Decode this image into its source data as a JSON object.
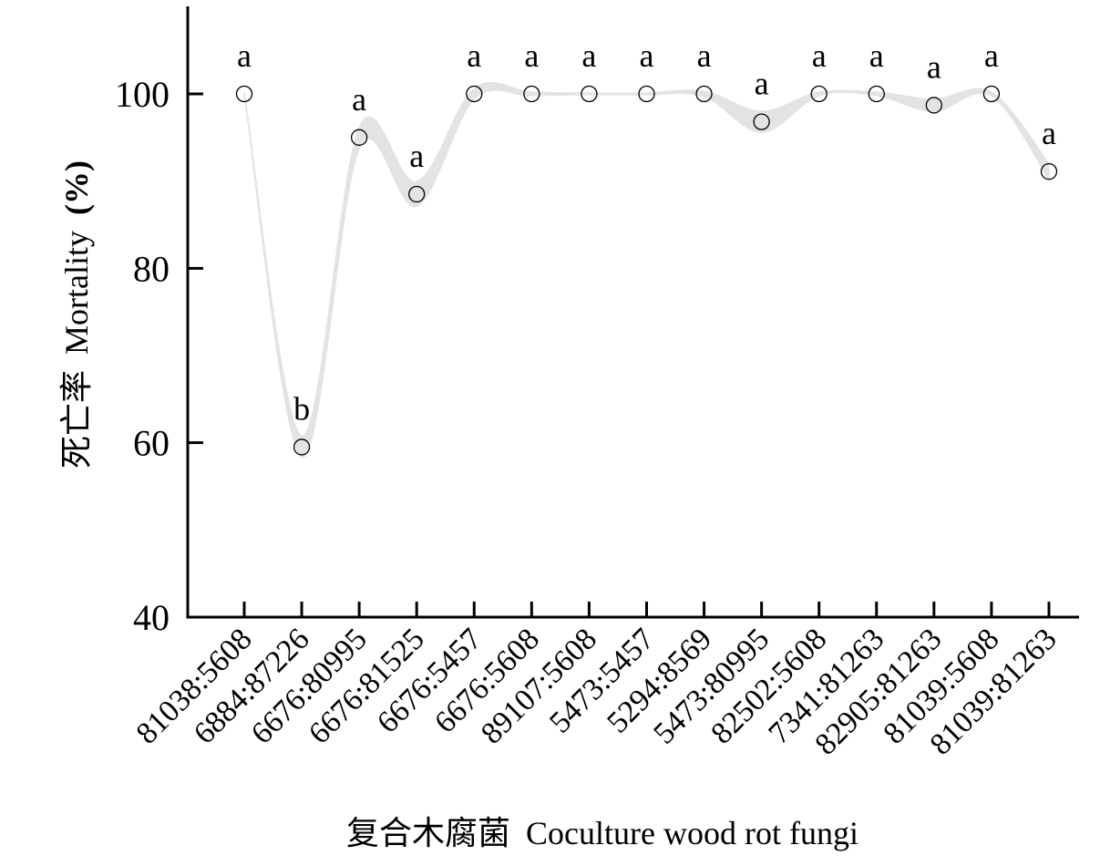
{
  "chart_data": {
    "type": "line",
    "title": "",
    "xlabel": "复合木腐菌 Coculture wood rot fungi",
    "xlabel_parts": {
      "cn": "复合木腐菌",
      "en": "Coculture wood rot fungi"
    },
    "ylabel": "死亡率 Mortality (%)",
    "ylabel_parts": {
      "cn": "死亡率",
      "en": "Mortality",
      "unit": "(%)"
    },
    "ylim": [
      40,
      110
    ],
    "yticks": [
      40,
      60,
      80,
      100
    ],
    "grid": false,
    "legend": null,
    "categories": [
      "81038:5608",
      "6884:87226",
      "6676:80995",
      "6676:81525",
      "6676:5457",
      "6676:5608",
      "89107:5608",
      "5473:5457",
      "5294:8569",
      "5473:80995",
      "82502:5608",
      "7341:81263",
      "82905:81263",
      "81039:5608",
      "81039:81263"
    ],
    "values": [
      100,
      59.5,
      95.0,
      88.5,
      100,
      100,
      100,
      100,
      100,
      96.8,
      100,
      100,
      98.7,
      100,
      91.1
    ],
    "significance_letters": [
      "a",
      "b",
      "a",
      "a",
      "a",
      "a",
      "a",
      "a",
      "a",
      "a",
      "a",
      "a",
      "a",
      "a",
      "a"
    ],
    "band_halfwidth": [
      0.1,
      1.2,
      1.2,
      1.4,
      0.6,
      0.2,
      0.1,
      0.1,
      0.3,
      1.2,
      0.2,
      0.2,
      0.7,
      0.2,
      0.9
    ],
    "colors": {
      "band": "#e3e3e3",
      "marker_edge": "#000000",
      "marker_fill": "none",
      "axis": "#000000"
    }
  }
}
